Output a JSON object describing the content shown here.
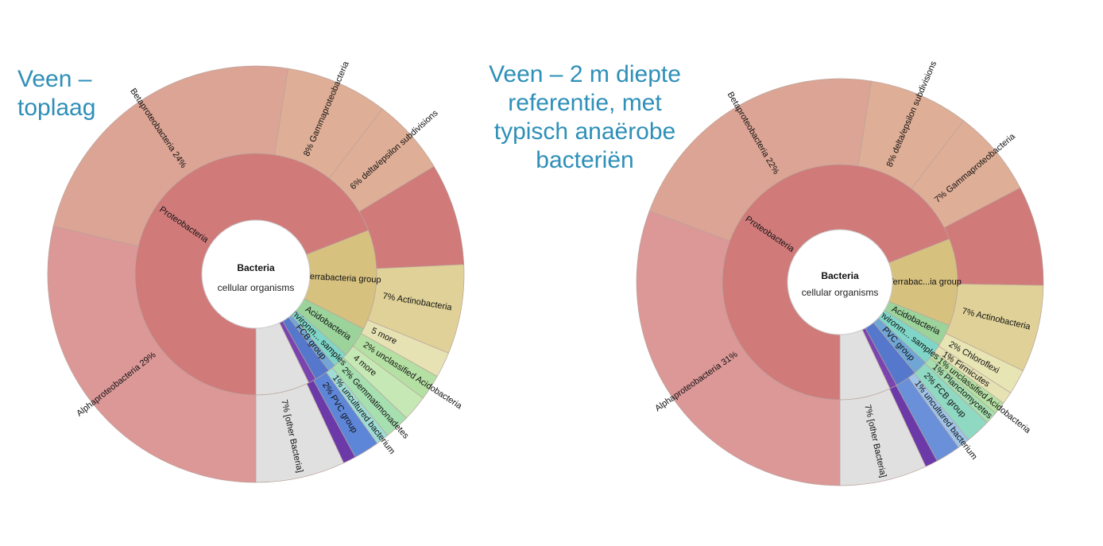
{
  "chart_data": [
    {
      "type": "sunburst",
      "title_lines": [
        "Veen –",
        "toplaag"
      ],
      "center": {
        "title": "Bacteria",
        "subtitle": "cellular organisms"
      },
      "rings": {
        "inner": [
          {
            "name": "Proteobacteria",
            "value": 67,
            "color": "#d07a7a"
          },
          {
            "name": "Terrabacteria group",
            "value": 13,
            "color": "#d7c17f"
          },
          {
            "name": "Acidobacteria",
            "value": 4,
            "color": "#9bd39b"
          },
          {
            "name": "environm... samples",
            "value": 2,
            "color": "#7fd6c8"
          },
          {
            "name": "FCB group",
            "value": 1,
            "color": "#6fa6d6"
          },
          {
            "name": "",
            "value": 2,
            "color": "#5577cc"
          },
          {
            "name": "",
            "value": 1,
            "color": "#7a44b0"
          },
          {
            "name": "",
            "value": 7,
            "color": "#e0e0e0"
          }
        ],
        "outer": [
          {
            "name": "Alphaproteobacteria",
            "value": 29,
            "label": "Alphaproteobacteria  29%",
            "color": "#dc9797"
          },
          {
            "name": "Betaproteobacteria",
            "value": 24,
            "label": "Betaproteobacteria  24%",
            "color": "#dca494"
          },
          {
            "name": "Gammaproteobacteria",
            "value": 8,
            "label": "8%  Gammaproteobacteria",
            "color": "#dfae96"
          },
          {
            "name": "deltaepsilon subdivisions",
            "value": 6,
            "label": "6%  delta/epsilon subdivisions",
            "color": "#dfae96"
          },
          {
            "name": "",
            "value": 8,
            "color": "#d07a7a"
          },
          {
            "name": "Actinobacteria",
            "value": 7,
            "label": "7%  Actinobacteria",
            "color": "#dfd197"
          },
          {
            "name": "5 more",
            "value": 2,
            "label": "5 more",
            "color": "#e7e2b4"
          },
          {
            "name": "unclassified Acidobacteria",
            "value": 2,
            "label": "2%  unclassified Acidobacteria",
            "color": "#b5e0a3"
          },
          {
            "name": "4 more",
            "value": 2,
            "label": "4 more",
            "color": "#c6e8b4"
          },
          {
            "name": "Gemmatimonadetes",
            "value": 2,
            "label": "2%  Gemmatimonadetes",
            "color": "#a6dfb0"
          },
          {
            "name": "uncultured bacterium",
            "value": 1,
            "label": "1%  uncultured bacterium",
            "color": "#9fdcd6"
          },
          {
            "name": "PVC group",
            "value": 2,
            "label": "2%  PVC group",
            "color": "#5e86d8"
          },
          {
            "name": "",
            "value": 1,
            "color": "#6b3aa8"
          },
          {
            "name": "[other Bacteria]",
            "value": 7,
            "label": "7%  [other Bacteria]",
            "color": "#e0e0e0"
          }
        ]
      }
    },
    {
      "type": "sunburst",
      "title_lines": [
        "Veen – 2 m diepte",
        "referentie, met",
        "typisch anaërobe",
        "bacteriën"
      ],
      "center": {
        "title": "Bacteria",
        "subtitle": "cellular organisms"
      },
      "rings": {
        "inner": [
          {
            "name": "Proteobacteria",
            "value": 69,
            "color": "#d07a7a"
          },
          {
            "name": "Terrabac...ia group",
            "value": 12,
            "color": "#d7c17f"
          },
          {
            "name": "Acidobacteria",
            "value": 3,
            "color": "#9bd39b"
          },
          {
            "name": "environm... samples",
            "value": 3,
            "color": "#7fd6c8"
          },
          {
            "name": "PVC group",
            "value": 2,
            "color": "#6fa6d6"
          },
          {
            "name": "",
            "value": 3,
            "color": "#5577cc"
          },
          {
            "name": "",
            "value": 1,
            "color": "#7a44b0"
          },
          {
            "name": "",
            "value": 7,
            "color": "#e0e0e0"
          }
        ],
        "outer": [
          {
            "name": "Alphaproteobacteria",
            "value": 31,
            "label": "Alphaproteobacteria  31%",
            "color": "#dc9797"
          },
          {
            "name": "Betaproteobacteria",
            "value": 22,
            "label": "Betaproteobacteria  22%",
            "color": "#dca494"
          },
          {
            "name": "deltaepsilon subdivisions",
            "value": 8,
            "label": "8%  delta/epsilon subdivisions",
            "color": "#dfae96"
          },
          {
            "name": "Gammaproteobacteria",
            "value": 7,
            "label": "7%  Gammaproteobacteria",
            "color": "#dfae96"
          },
          {
            "name": "",
            "value": 8,
            "color": "#d07a7a"
          },
          {
            "name": "Actinobacteria",
            "value": 7,
            "label": "7%  Actinobacteria",
            "color": "#dfd197"
          },
          {
            "name": "Chloroflexi",
            "value": 2,
            "label": "2%  Chloroflexi",
            "color": "#e8e5b4"
          },
          {
            "name": "Firmicutes",
            "value": 1,
            "label": "1%  Firmicutes",
            "color": "#e7e2b4"
          },
          {
            "name": "unclassified Acidobacteria",
            "value": 1,
            "label": "1%  unclassified Acidobacteria",
            "color": "#b5e0a3"
          },
          {
            "name": "Planctomycetes",
            "value": 1,
            "label": "1%  Planctomycetes",
            "color": "#a6dfb0"
          },
          {
            "name": "FCB group",
            "value": 2,
            "label": "2%  FCB group",
            "color": "#8fd9c2"
          },
          {
            "name": "uncultured bacterium",
            "value": 1,
            "label": "1%  uncultured bacterium",
            "color": "#9fc4e8"
          },
          {
            "name": "",
            "value": 2,
            "color": "#6a90da"
          },
          {
            "name": "",
            "value": 1,
            "color": "#6b3aa8"
          },
          {
            "name": "[other Bacteria]",
            "value": 7,
            "label": "7%  [other Bacteria]",
            "color": "#e0e0e0"
          }
        ]
      }
    }
  ]
}
